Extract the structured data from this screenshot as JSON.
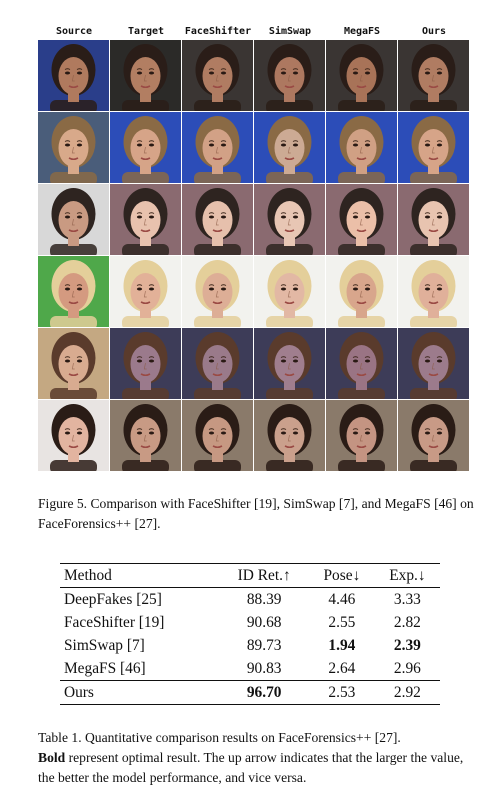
{
  "figure": {
    "columns": [
      "Source",
      "Target",
      "FaceShifter",
      "SimSwap",
      "MegaFS",
      "Ours"
    ],
    "rows": [
      {
        "bg": [
          "#2a3e8a",
          "#2b2a28",
          "#3a3533",
          "#3a3533",
          "#3a3533",
          "#3a3533"
        ],
        "skin": [
          "#b07a5e",
          "#b27e62",
          "#b07c62",
          "#ad7860",
          "#a87358",
          "#b07c62"
        ],
        "hair": "#2a1d18"
      },
      {
        "bg": [
          "#4a5d7a",
          "#2c4db8",
          "#2c4db8",
          "#2c4db8",
          "#2c4db8",
          "#2c4db8"
        ],
        "skin": [
          "#d8a98a",
          "#d6a488",
          "#d2a186",
          "#ccaa94",
          "#d0a084",
          "#d6a488"
        ],
        "hair": "#8a6a45"
      },
      {
        "bg": [
          "#d8d8d8",
          "#8a6a70",
          "#8a6a70",
          "#8a6a70",
          "#8a6a70",
          "#8a6a70"
        ],
        "skin": [
          "#c99a82",
          "#e8c2ae",
          "#e6c0ac",
          "#e8c6b4",
          "#ebbfa8",
          "#e8c4b0"
        ],
        "hair": "#2e2420"
      },
      {
        "bg": [
          "#4fa84a",
          "#f2f2ee",
          "#f2f2ee",
          "#f2f2ee",
          "#f2f2ee",
          "#f2f2ee"
        ],
        "skin": [
          "#d49a80",
          "#e2b198",
          "#ddae96",
          "#e2b8a4",
          "#d8a68c",
          "#e0b09a"
        ],
        "hair": "#e4cf9a"
      },
      {
        "bg": [
          "#c4a882",
          "#3d3c58",
          "#3d3c58",
          "#3d3c58",
          "#3d3c58",
          "#3d3c58"
        ],
        "skin": [
          "#d8ab90",
          "#9b7a8c",
          "#9a7a8a",
          "#a07e8e",
          "#9a7484",
          "#9c7b8c"
        ],
        "hair": "#5a3b2c"
      },
      {
        "bg": [
          "#e8e4e2",
          "#8a7a6a",
          "#8a7a6a",
          "#8a7a6a",
          "#8a7a6a",
          "#8a7a6a"
        ],
        "skin": [
          "#e2b4a0",
          "#c89a84",
          "#c69882",
          "#caa08c",
          "#c49482",
          "#c89a86"
        ],
        "hair": "#2a1c16"
      }
    ],
    "caption": "Figure 5.  Comparison with FaceShifter [19], SimSwap [7], and MegaFS [46] on FaceForensics++ [27]."
  },
  "table": {
    "headers": [
      "Method",
      "ID Ret.↑",
      "Pose↓",
      "Exp.↓"
    ],
    "rows": [
      {
        "method": "DeepFakes [25]",
        "id_ret": "88.39",
        "pose": "4.46",
        "exp": "3.33"
      },
      {
        "method": "FaceShifter [19]",
        "id_ret": "90.68",
        "pose": "2.55",
        "exp": "2.82"
      },
      {
        "method": "SimSwap [7]",
        "id_ret": "89.73",
        "pose": "1.94",
        "exp": "2.39"
      },
      {
        "method": "MegaFS [46]",
        "id_ret": "90.83",
        "pose": "2.64",
        "exp": "2.96"
      },
      {
        "method": "Ours",
        "id_ret": "96.70",
        "pose": "2.53",
        "exp": "2.92"
      }
    ],
    "caption_bold": "Bold",
    "caption_prefix": "Table 1. Quantitative comparison results on FaceForensics++ [27].",
    "caption_rest": " represent optimal result.  The up arrow indicates that the larger the value, the better the model performance, and vice versa."
  }
}
